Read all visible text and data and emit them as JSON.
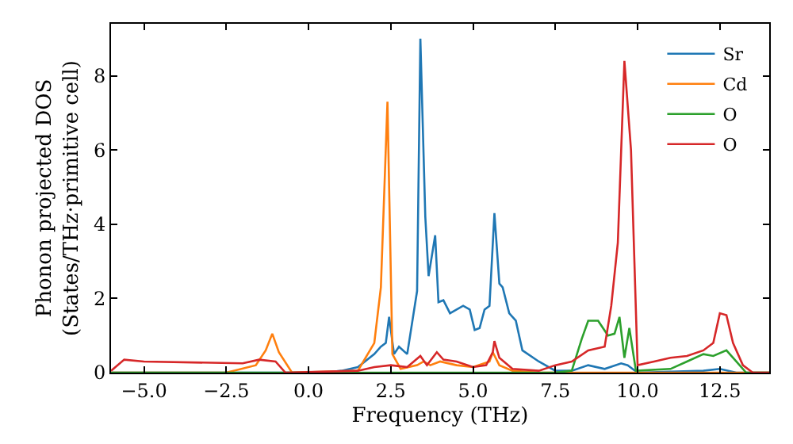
{
  "chart_data": {
    "type": "line",
    "xlabel": "Frequency (THz)",
    "ylabel": "Phonon projected DOS\n(States/THz·primitive cell)",
    "xlim": [
      -6,
      14
    ],
    "ylim": [
      0,
      9.4
    ],
    "xticks": [
      {
        "value": -5,
        "label": "−5.0"
      },
      {
        "value": -2.5,
        "label": "−2.5"
      },
      {
        "value": 0,
        "label": "0.0"
      },
      {
        "value": 2.5,
        "label": "2.5"
      },
      {
        "value": 5,
        "label": "5.0"
      },
      {
        "value": 7.5,
        "label": "7.5"
      },
      {
        "value": 10,
        "label": "10.0"
      },
      {
        "value": 12.5,
        "label": "12.5"
      }
    ],
    "yticks": [
      0,
      2,
      4,
      6,
      8
    ],
    "legend": "top right",
    "series": [
      {
        "name": "Sr",
        "color": "#1f77b4",
        "x": [
          -6,
          0.5,
          1.0,
          1.5,
          2.0,
          2.2,
          2.35,
          2.45,
          2.6,
          2.75,
          3.0,
          3.3,
          3.4,
          3.55,
          3.65,
          3.85,
          3.95,
          4.1,
          4.3,
          4.7,
          4.9,
          5.05,
          5.2,
          5.35,
          5.5,
          5.65,
          5.8,
          5.9,
          6.1,
          6.3,
          6.5,
          7.0,
          7.5,
          8.0,
          8.5,
          9.0,
          9.5,
          9.7,
          10.0,
          12.0,
          12.5,
          13.0,
          14
        ],
        "values": [
          0,
          0,
          0.05,
          0.15,
          0.5,
          0.7,
          0.8,
          1.5,
          0.5,
          0.7,
          0.5,
          2.2,
          9.0,
          4.2,
          2.6,
          3.7,
          1.9,
          1.95,
          1.6,
          1.8,
          1.7,
          1.15,
          1.2,
          1.7,
          1.8,
          4.3,
          2.4,
          2.3,
          1.6,
          1.4,
          0.6,
          0.3,
          0.05,
          0.05,
          0.2,
          0.1,
          0.25,
          0.2,
          0,
          0.05,
          0.1,
          0,
          0
        ]
      },
      {
        "name": "Cd",
        "color": "#ff7f0e",
        "x": [
          -6,
          -2.5,
          -1.6,
          -1.3,
          -1.1,
          -0.9,
          -0.5,
          1.5,
          2.0,
          2.2,
          2.4,
          2.55,
          2.8,
          3.3,
          3.5,
          3.7,
          4.0,
          4.5,
          5.0,
          5.5,
          5.6,
          5.8,
          6.2,
          7.0,
          14
        ],
        "values": [
          0,
          0,
          0.2,
          0.6,
          1.05,
          0.55,
          0,
          0.05,
          0.8,
          2.3,
          7.3,
          0.5,
          0.1,
          0.2,
          0.3,
          0.2,
          0.3,
          0.2,
          0.15,
          0.3,
          0.55,
          0.2,
          0.05,
          0,
          0
        ]
      },
      {
        "name": "O",
        "color": "#2ca02c",
        "x": [
          -6,
          7.5,
          8.0,
          8.3,
          8.5,
          8.8,
          9.1,
          9.3,
          9.45,
          9.6,
          9.75,
          9.95,
          11.0,
          11.5,
          12.0,
          12.3,
          12.7,
          13.0,
          13.3,
          14
        ],
        "values": [
          0,
          0,
          0.05,
          0.9,
          1.4,
          1.4,
          1.0,
          1.05,
          1.5,
          0.4,
          1.2,
          0.05,
          0.1,
          0.3,
          0.5,
          0.45,
          0.6,
          0.3,
          0,
          0
        ]
      },
      {
        "name": "O",
        "color": "#d62728",
        "x": [
          -6,
          -5.6,
          -5.0,
          -2.0,
          -1.5,
          -1.0,
          -0.7,
          1.5,
          2.0,
          2.5,
          3.0,
          3.4,
          3.6,
          3.9,
          4.1,
          4.5,
          5.0,
          5.4,
          5.6,
          5.65,
          5.8,
          6.2,
          7.0,
          7.5,
          8.0,
          8.5,
          9.0,
          9.2,
          9.4,
          9.6,
          9.8,
          10.0,
          10.5,
          11.0,
          11.5,
          12.0,
          12.3,
          12.5,
          12.7,
          12.9,
          13.2,
          13.5,
          14
        ],
        "values": [
          0.05,
          0.35,
          0.3,
          0.25,
          0.35,
          0.3,
          0,
          0.05,
          0.15,
          0.2,
          0.15,
          0.45,
          0.2,
          0.55,
          0.35,
          0.3,
          0.15,
          0.2,
          0.55,
          0.85,
          0.4,
          0.1,
          0.05,
          0.2,
          0.3,
          0.6,
          0.7,
          1.8,
          3.5,
          8.4,
          6.0,
          0.2,
          0.3,
          0.4,
          0.45,
          0.6,
          0.8,
          1.6,
          1.55,
          0.8,
          0.2,
          0,
          0
        ]
      }
    ]
  }
}
